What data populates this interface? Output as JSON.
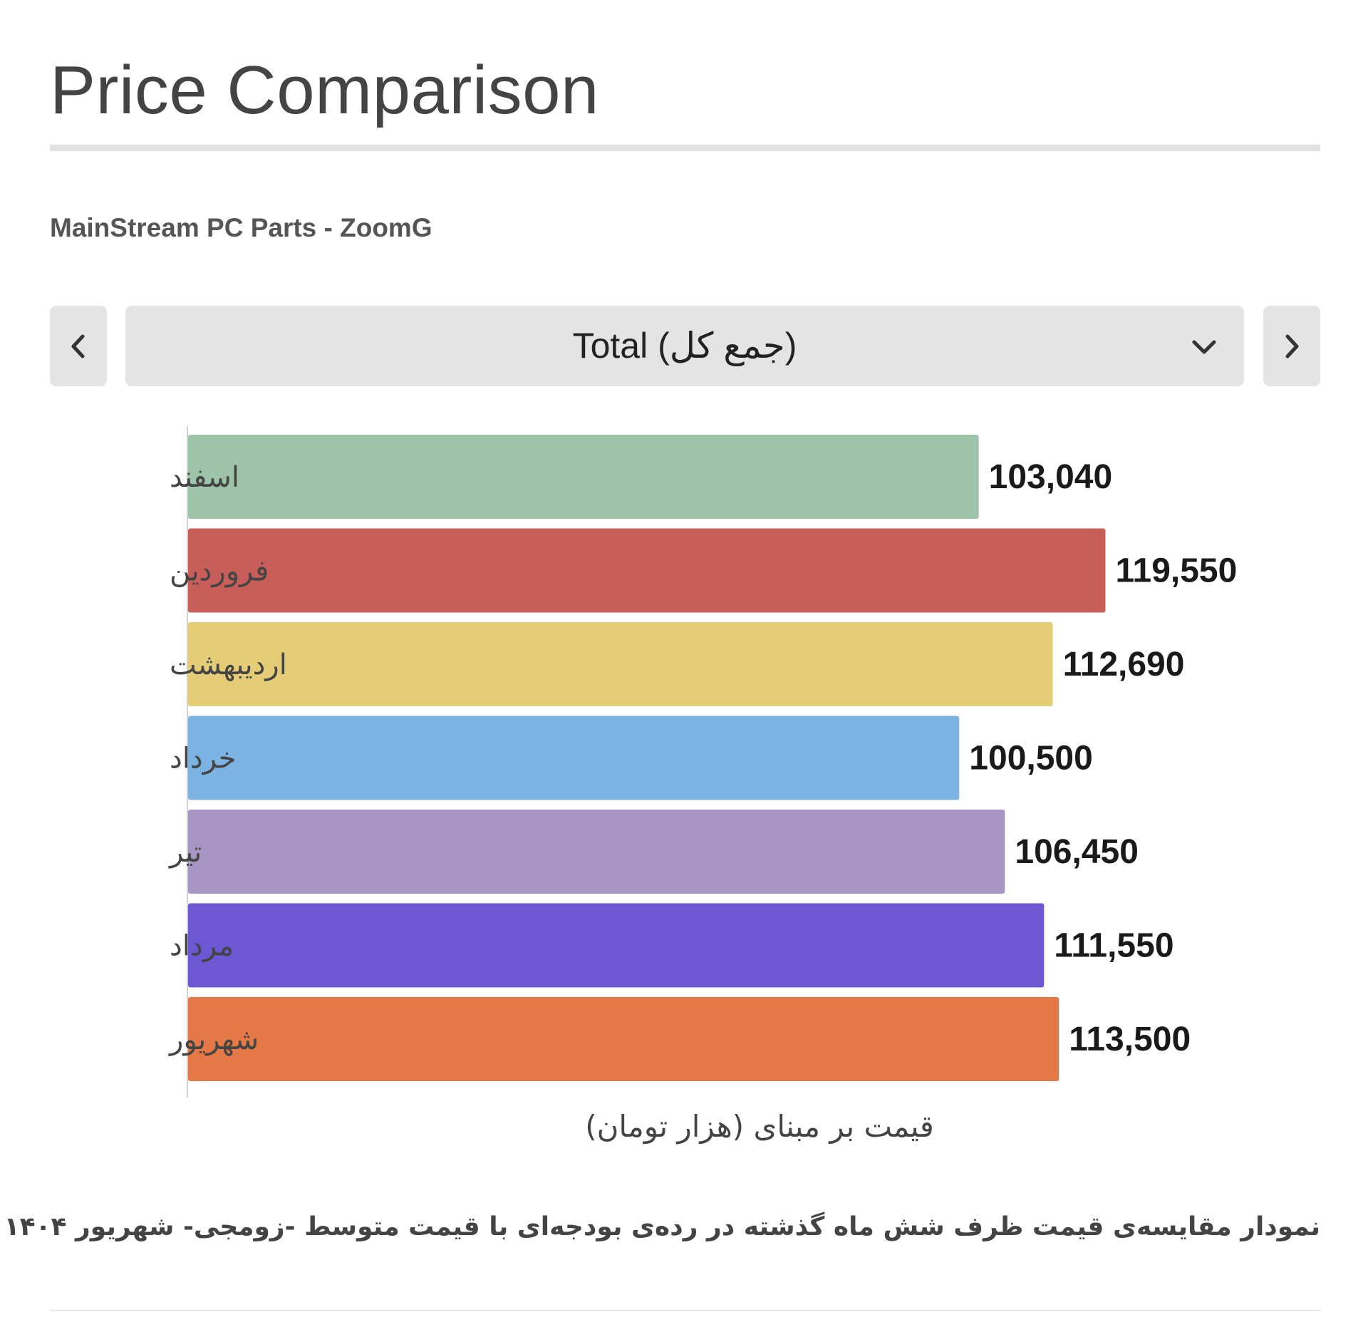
{
  "page": {
    "title": "Price Comparison",
    "subtitle": "MainStream PC Parts - ZoomG",
    "selector": {
      "selected": "Total (جمع کل)"
    },
    "caption": "نمودار مقایسه‌ی قیمت ظرف شش ماه گذشته در رده‌ی بودجه‌ای با قیمت متوسط -زومجی- شهریور ۱۴۰۴"
  },
  "icons": {
    "prev": "chevron-left-icon",
    "next": "chevron-right-icon",
    "dropdown": "chevron-down-icon"
  },
  "chart_data": {
    "type": "bar",
    "orientation": "horizontal",
    "categories": [
      "اسفند",
      "فروردین",
      "اردیبهشت",
      "خرداد",
      "تیر",
      "مرداد",
      "شهریور"
    ],
    "values": [
      103040,
      119550,
      112690,
      100500,
      106450,
      111550,
      113500
    ],
    "value_labels": [
      "103,040",
      "119,550",
      "112,690",
      "100,500",
      "106,450",
      "111,550",
      "113,500"
    ],
    "colors": [
      "#9dc3a9",
      "#c75e59",
      "#e5cc76",
      "#7db3e2",
      "#a796c3",
      "#6d57d3",
      "#e47846"
    ],
    "xlabel": "قیمت بر مبنای (هزار تومان)",
    "ylabel": "",
    "xlim": [
      0,
      130000
    ],
    "grid": false,
    "legend": "none"
  }
}
